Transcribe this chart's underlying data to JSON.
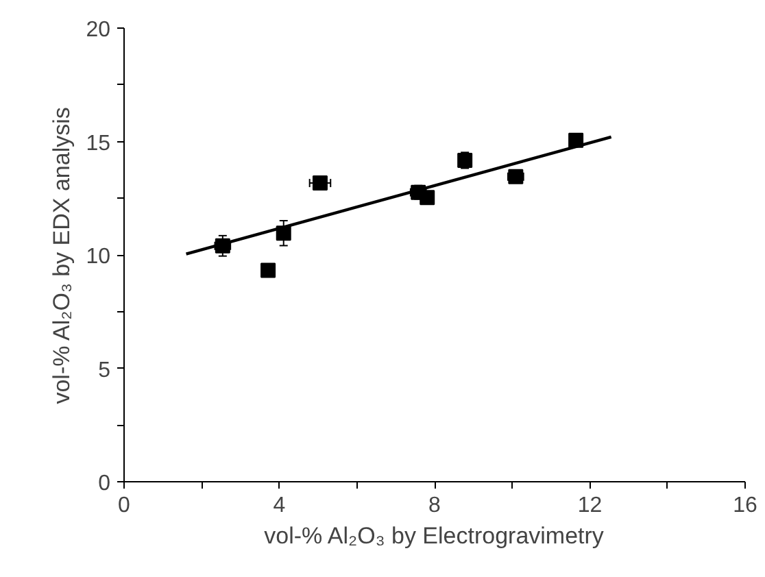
{
  "chart_data": {
    "type": "scatter",
    "xlabel": "vol-% Al₂O₃ by Electrogravimetry",
    "ylabel": "vol-% Al₂O₃ by EDX analysis",
    "xlim": [
      0,
      16
    ],
    "ylim": [
      0,
      20
    ],
    "xticks": [
      0,
      {
        "value": 2,
        "label": null
      },
      4,
      {
        "value": 6,
        "label": null
      },
      8,
      {
        "value": 10,
        "label": null
      },
      12,
      {
        "value": 14,
        "label": null
      },
      16
    ],
    "yticks": [
      0,
      {
        "value": 2.5,
        "label": null
      },
      5,
      {
        "value": 7.5,
        "label": null
      },
      10,
      {
        "value": 12.5,
        "label": null
      },
      15,
      {
        "value": 17.5,
        "label": null
      },
      20
    ],
    "grid": false,
    "series": [
      {
        "color": "#000000",
        "marker": "square",
        "x": [
          2.54,
          3.71,
          4.11,
          5.05,
          7.58,
          7.81,
          8.78,
          10.09,
          11.64
        ],
        "values": [
          10.4,
          9.32,
          10.96,
          13.17,
          12.76,
          12.53,
          14.17,
          13.45,
          15.05
        ],
        "errors": [
          0.45,
          null,
          0.55,
          null,
          0.3,
          null,
          0.35,
          null,
          null
        ],
        "xerrors": [
          0.2,
          null,
          null,
          0.27,
          0.2,
          null,
          null,
          0.2,
          null
        ]
      },
      {
        "type": "line",
        "color": "#000000",
        "x": [
          1.6,
          12.55
        ],
        "values": [
          10.04,
          15.2
        ],
        "line_style": "solid"
      }
    ]
  }
}
